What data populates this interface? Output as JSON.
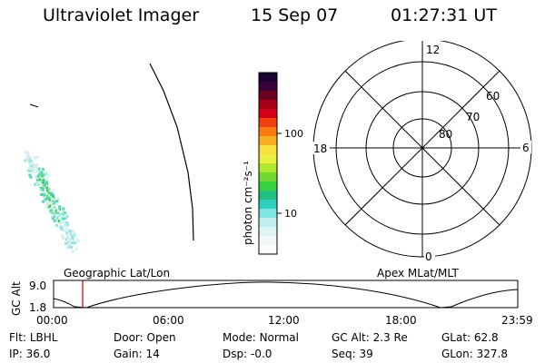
{
  "header": {
    "title": "Ultraviolet Imager",
    "date": "15 Sep 07",
    "time": "01:27:31 UT"
  },
  "colorbar": {
    "label": "photon cm⁻²s⁻¹",
    "ticks": [
      "100",
      "10"
    ]
  },
  "polar": {
    "mlt_labels": {
      "top": "12",
      "right": "6",
      "bottom": "0",
      "left": "18"
    },
    "lat_labels": [
      "60",
      "70",
      "80"
    ]
  },
  "orbit": {
    "left_label": "Geographic Lat/Lon",
    "right_label": "Apex MLat/MLT",
    "axis_label": "GC Alt",
    "y_ticks": [
      "9.0",
      "1.8"
    ],
    "x_ticks": [
      "00:00",
      "06:00",
      "12:00",
      "18:00",
      "23:59"
    ],
    "marker_color": "#c00000"
  },
  "status": {
    "row1": [
      {
        "key": "Flt:",
        "value": "LBHL"
      },
      {
        "key": "Door:",
        "value": "Open"
      },
      {
        "key": "Mode:",
        "value": "Normal"
      },
      {
        "key": "GC Alt:",
        "value": "2.3 Re"
      },
      {
        "key": "GLat:",
        "value": "62.8"
      }
    ],
    "row2": [
      {
        "key": "IP:",
        "value": "36.0"
      },
      {
        "key": "Gain:",
        "value": "14"
      },
      {
        "key": "Dsp:",
        "value": "-0.0"
      },
      {
        "key": "Seq:",
        "value": "39"
      },
      {
        "key": "GLon:",
        "value": "327.8"
      }
    ]
  }
}
